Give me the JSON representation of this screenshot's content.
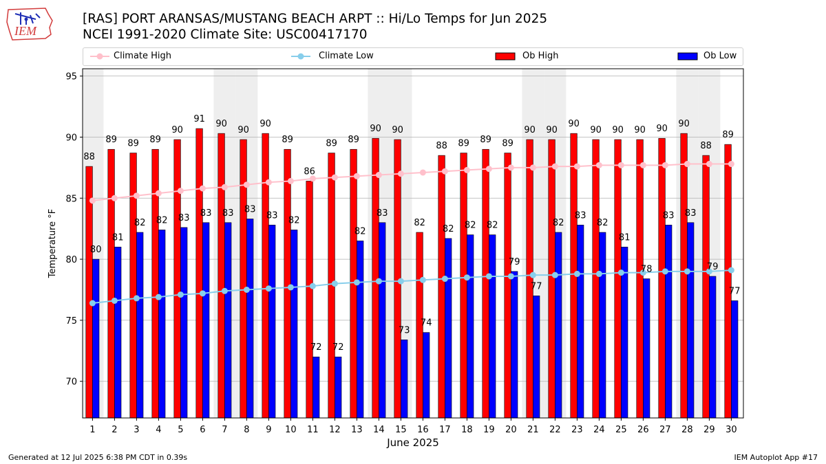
{
  "header": {
    "logo_text": "IEM",
    "title_line1": "[RAS] PORT ARANSAS/MUSTANG BEACH ARPT :: Hi/Lo Temps for Jun 2025",
    "title_line2": "NCEI 1991-2020 Climate Site: USC00417170"
  },
  "footer": {
    "generated": "Generated at 12 Jul 2025 6:38 PM CDT in 0.39s",
    "app": "IEM Autoplot App #17"
  },
  "legend": {
    "climate_high": "Climate High",
    "climate_low": "Climate Low",
    "ob_high": "Ob High",
    "ob_low": "Ob Low"
  },
  "colors": {
    "ob_high": "#ff0000",
    "ob_low": "#0000ff",
    "climate_high": "#ffc0cb",
    "climate_low": "#87ceeb",
    "weekend_shade": "#eeeeee",
    "grid": "#b0b0b0"
  },
  "chart_data": {
    "type": "bar",
    "xlabel": "June 2025",
    "ylabel": "Temperature °F",
    "ylim": [
      67,
      95.6
    ],
    "yticks": [
      70,
      75,
      80,
      85,
      90,
      95
    ],
    "grid": "horizontal",
    "legend_position": "top",
    "days": [
      1,
      2,
      3,
      4,
      5,
      6,
      7,
      8,
      9,
      10,
      11,
      12,
      13,
      14,
      15,
      16,
      17,
      18,
      19,
      20,
      21,
      22,
      23,
      24,
      25,
      26,
      27,
      28,
      29,
      30
    ],
    "weekend_days": [
      1,
      7,
      8,
      14,
      15,
      21,
      22,
      28,
      29
    ],
    "series": [
      {
        "name": "Ob High",
        "kind": "bar",
        "values": [
          87.6,
          89,
          88.7,
          89,
          89.8,
          90.7,
          90.3,
          89.8,
          90.3,
          89,
          86.4,
          88.7,
          89,
          89.9,
          89.8,
          82.2,
          88.5,
          88.7,
          89,
          88.7,
          89.8,
          89.8,
          90.3,
          89.8,
          89.8,
          89.8,
          89.9,
          90.3,
          88.5,
          89.4
        ],
        "labels": [
          "88",
          "89",
          "89",
          "89",
          "90",
          "91",
          "90",
          "90",
          "90",
          "89",
          "86",
          "89",
          "89",
          "90",
          "90",
          "82",
          "88",
          "89",
          "89",
          "89",
          "90",
          "90",
          "90",
          "90",
          "90",
          "90",
          "90",
          "90",
          "88",
          "89"
        ]
      },
      {
        "name": "Ob Low",
        "kind": "bar",
        "values": [
          80,
          81,
          82.2,
          82.4,
          82.6,
          83,
          83,
          83.3,
          82.8,
          82.4,
          72,
          72,
          81.5,
          83,
          73.4,
          74,
          81.7,
          82,
          82,
          79,
          77,
          82.2,
          82.8,
          82.2,
          81,
          78.4,
          82.8,
          83,
          78.6,
          76.6
        ],
        "labels": [
          "80",
          "81",
          "82",
          "82",
          "83",
          "83",
          "83",
          "83",
          "83",
          "82",
          "72",
          "72",
          "82",
          "83",
          "73",
          "74",
          "82",
          "82",
          "82",
          "79",
          "77",
          "82",
          "83",
          "82",
          "81",
          "78",
          "83",
          "83",
          "79",
          "77"
        ]
      },
      {
        "name": "Climate High",
        "kind": "line",
        "values": [
          84.8,
          85.0,
          85.2,
          85.4,
          85.6,
          85.8,
          85.9,
          86.1,
          86.3,
          86.4,
          86.6,
          86.7,
          86.8,
          86.9,
          87.0,
          87.1,
          87.2,
          87.3,
          87.4,
          87.5,
          87.5,
          87.6,
          87.6,
          87.7,
          87.7,
          87.7,
          87.7,
          87.8,
          87.8,
          87.8
        ]
      },
      {
        "name": "Climate Low",
        "kind": "line",
        "values": [
          76.4,
          76.6,
          76.8,
          76.9,
          77.1,
          77.2,
          77.4,
          77.5,
          77.6,
          77.7,
          77.8,
          78.0,
          78.1,
          78.2,
          78.2,
          78.3,
          78.4,
          78.5,
          78.6,
          78.6,
          78.7,
          78.7,
          78.8,
          78.8,
          78.9,
          78.9,
          79.0,
          79.0,
          79.0,
          79.1
        ]
      }
    ]
  }
}
